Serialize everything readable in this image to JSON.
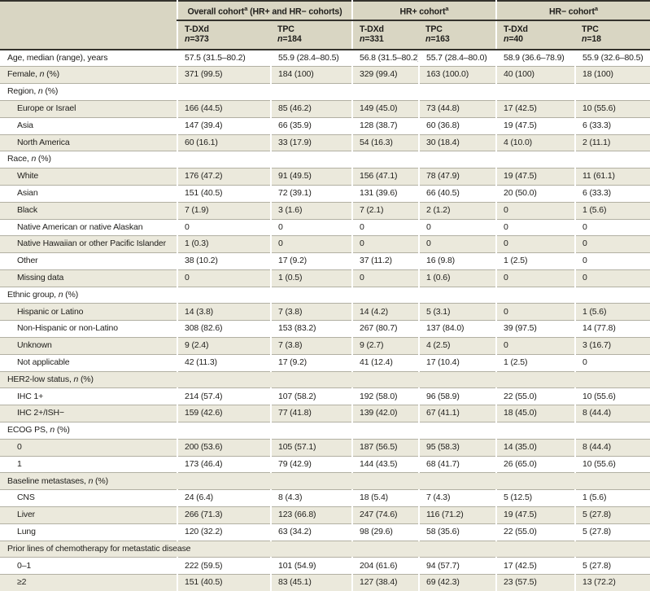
{
  "table": {
    "name": "Baseline characteristics table",
    "colors": {
      "header_bg": "#d9d6c3",
      "stripe_bg": "#ebe9dc",
      "rule_dark": "#34332d",
      "rule_light": "#b2b0a3",
      "text": "#1f1e1b"
    },
    "col_groups": [
      {
        "pre": "Overall cohort",
        "sup": "a",
        "post": " (HR+ and HR− cohorts)"
      },
      {
        "pre": "HR+ cohort",
        "sup": "a",
        "post": ""
      },
      {
        "pre": "HR− cohort",
        "sup": "a",
        "post": ""
      }
    ],
    "sub_columns": [
      {
        "arm": "T-DXd",
        "n": "n=373"
      },
      {
        "arm": "TPC",
        "n": "n=184"
      },
      {
        "arm": "T-DXd",
        "n": "n=331"
      },
      {
        "arm": "TPC",
        "n": "n=163"
      },
      {
        "arm": "T-DXd",
        "n": "n=40"
      },
      {
        "arm": "TPC",
        "n": "n=18"
      }
    ],
    "rows": [
      {
        "type": "data",
        "label": "Age, median (range), years",
        "values": [
          "57.5 (31.5–80.2)",
          "55.9 (28.4–80.5)",
          "56.8 (31.5–80.2)",
          "55.7 (28.4–80.0)",
          "58.9 (36.6–78.9)",
          "55.9 (32.6–80.5)"
        ]
      },
      {
        "type": "data",
        "label": "Female, n (%)",
        "values": [
          "371 (99.5)",
          "184 (100)",
          "329 (99.4)",
          "163 (100.0)",
          "40 (100)",
          "18 (100)"
        ]
      },
      {
        "type": "section",
        "label": "Region, n (%)"
      },
      {
        "type": "data",
        "indent": true,
        "label": "Europe or Israel",
        "values": [
          "166 (44.5)",
          "85 (46.2)",
          "149 (45.0)",
          "73 (44.8)",
          "17 (42.5)",
          "10 (55.6)"
        ]
      },
      {
        "type": "data",
        "indent": true,
        "label": "Asia",
        "values": [
          "147 (39.4)",
          "66 (35.9)",
          "128 (38.7)",
          "60 (36.8)",
          "19 (47.5)",
          "6 (33.3)"
        ]
      },
      {
        "type": "data",
        "indent": true,
        "label": "North America",
        "values": [
          "60 (16.1)",
          "33 (17.9)",
          "54 (16.3)",
          "30 (18.4)",
          "4 (10.0)",
          "2 (11.1)"
        ]
      },
      {
        "type": "section",
        "label": "Race, n (%)"
      },
      {
        "type": "data",
        "indent": true,
        "label": "White",
        "values": [
          "176 (47.2)",
          "91 (49.5)",
          "156 (47.1)",
          "78 (47.9)",
          "19 (47.5)",
          "11 (61.1)"
        ]
      },
      {
        "type": "data",
        "indent": true,
        "label": "Asian",
        "values": [
          "151 (40.5)",
          "72 (39.1)",
          "131 (39.6)",
          "66 (40.5)",
          "20 (50.0)",
          "6 (33.3)"
        ]
      },
      {
        "type": "data",
        "indent": true,
        "label": "Black",
        "values": [
          "7 (1.9)",
          "3 (1.6)",
          "7 (2.1)",
          "2 (1.2)",
          "0",
          "1 (5.6)"
        ]
      },
      {
        "type": "data",
        "indent": true,
        "label": "Native American or native Alaskan",
        "values": [
          "0",
          "0",
          "0",
          "0",
          "0",
          "0"
        ]
      },
      {
        "type": "data",
        "indent": true,
        "label": "Native Hawaiian or other Pacific Islander",
        "values": [
          "1 (0.3)",
          "0",
          "0",
          "0",
          "0",
          "0"
        ]
      },
      {
        "type": "data",
        "indent": true,
        "label": "Other",
        "values": [
          "38 (10.2)",
          "17 (9.2)",
          "37 (11.2)",
          "16 (9.8)",
          "1 (2.5)",
          "0"
        ]
      },
      {
        "type": "data",
        "indent": true,
        "label": "Missing data",
        "values": [
          "0",
          "1 (0.5)",
          "0",
          "1 (0.6)",
          "0",
          "0"
        ]
      },
      {
        "type": "section",
        "label": "Ethnic group, n (%)"
      },
      {
        "type": "data",
        "indent": true,
        "label": "Hispanic or Latino",
        "values": [
          "14 (3.8)",
          "7 (3.8)",
          "14 (4.2)",
          "5 (3.1)",
          "0",
          "1 (5.6)"
        ]
      },
      {
        "type": "data",
        "indent": true,
        "label": "Non-Hispanic or non-Latino",
        "values": [
          "308 (82.6)",
          "153 (83.2)",
          "267 (80.7)",
          "137 (84.0)",
          "39 (97.5)",
          "14 (77.8)"
        ]
      },
      {
        "type": "data",
        "indent": true,
        "label": "Unknown",
        "values": [
          "9 (2.4)",
          "7 (3.8)",
          "9 (2.7)",
          "4 (2.5)",
          "0",
          "3 (16.7)"
        ]
      },
      {
        "type": "data",
        "indent": true,
        "label": "Not applicable",
        "values": [
          "42 (11.3)",
          "17 (9.2)",
          "41 (12.4)",
          "17 (10.4)",
          "1 (2.5)",
          "0"
        ]
      },
      {
        "type": "section",
        "label": "HER2-low status, n (%)"
      },
      {
        "type": "data",
        "indent": true,
        "label": "IHC 1+",
        "values": [
          "214 (57.4)",
          "107 (58.2)",
          "192 (58.0)",
          "96 (58.9)",
          "22 (55.0)",
          "10 (55.6)"
        ]
      },
      {
        "type": "data",
        "indent": true,
        "label": "IHC 2+/ISH−",
        "values": [
          "159 (42.6)",
          "77 (41.8)",
          "139 (42.0)",
          "67 (41.1)",
          "18 (45.0)",
          "8 (44.4)"
        ]
      },
      {
        "type": "section",
        "label": "ECOG PS, n (%)"
      },
      {
        "type": "data",
        "indent": true,
        "label": "0",
        "values": [
          "200 (53.6)",
          "105 (57.1)",
          "187 (56.5)",
          "95 (58.3)",
          "14 (35.0)",
          "8 (44.4)"
        ]
      },
      {
        "type": "data",
        "indent": true,
        "label": "1",
        "values": [
          "173 (46.4)",
          "79 (42.9)",
          "144 (43.5)",
          "68 (41.7)",
          "26 (65.0)",
          "10 (55.6)"
        ]
      },
      {
        "type": "section",
        "label": "Baseline metastases, n (%)"
      },
      {
        "type": "data",
        "indent": true,
        "label": "CNS",
        "values": [
          "24 (6.4)",
          "8 (4.3)",
          "18 (5.4)",
          "7 (4.3)",
          "5 (12.5)",
          "1 (5.6)"
        ]
      },
      {
        "type": "data",
        "indent": true,
        "label": "Liver",
        "values": [
          "266 (71.3)",
          "123 (66.8)",
          "247 (74.6)",
          "116 (71.2)",
          "19 (47.5)",
          "5 (27.8)"
        ]
      },
      {
        "type": "data",
        "indent": true,
        "label": "Lung",
        "values": [
          "120 (32.2)",
          "63 (34.2)",
          "98 (29.6)",
          "58 (35.6)",
          "22 (55.0)",
          "5 (27.8)"
        ]
      },
      {
        "type": "section",
        "label": "Prior lines of chemotherapy for metastatic disease"
      },
      {
        "type": "data",
        "indent": true,
        "label": "0–1",
        "values": [
          "222 (59.5)",
          "101 (54.9)",
          "204 (61.6)",
          "94 (57.7)",
          "17 (42.5)",
          "5 (27.8)"
        ]
      },
      {
        "type": "data",
        "indent": true,
        "label": "≥2",
        "values": [
          "151 (40.5)",
          "83 (45.1)",
          "127 (38.4)",
          "69 (42.3)",
          "23 (57.5)",
          "13 (72.2)"
        ]
      }
    ]
  }
}
